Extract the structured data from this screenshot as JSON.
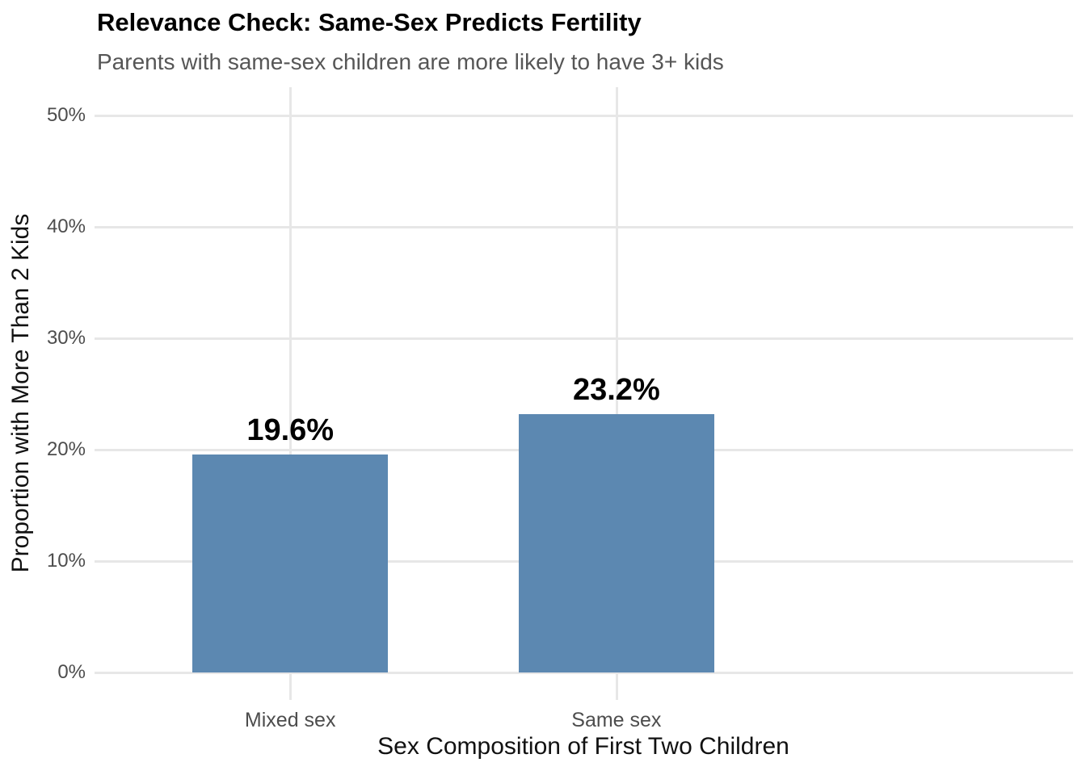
{
  "page": {
    "background": "#ffffff"
  },
  "chart_data": {
    "type": "bar",
    "title": "Relevance Check: Same-Sex Predicts Fertility",
    "subtitle": "Parents with same-sex children are more likely to have 3+ kids",
    "xlabel": "Sex Composition of First Two Children",
    "ylabel": "Proportion with More Than 2 Kids",
    "categories": [
      "Mixed sex",
      "Same sex"
    ],
    "values": [
      19.6,
      23.2
    ],
    "value_labels": [
      "19.6%",
      "23.2%"
    ],
    "ylim": [
      0,
      50
    ],
    "yticks": [
      0,
      10,
      20,
      30,
      40,
      50
    ],
    "ytick_labels": [
      "0%",
      "10%",
      "20%",
      "30%",
      "40%",
      "50%"
    ],
    "grid": true,
    "legend": false,
    "bar_color": "#5c88b1",
    "colors": {
      "grid": "#e7e7e7",
      "axis_text": "#4d4d4d",
      "title": "#000000",
      "subtitle": "#565656",
      "axis_title": "#111111"
    }
  }
}
